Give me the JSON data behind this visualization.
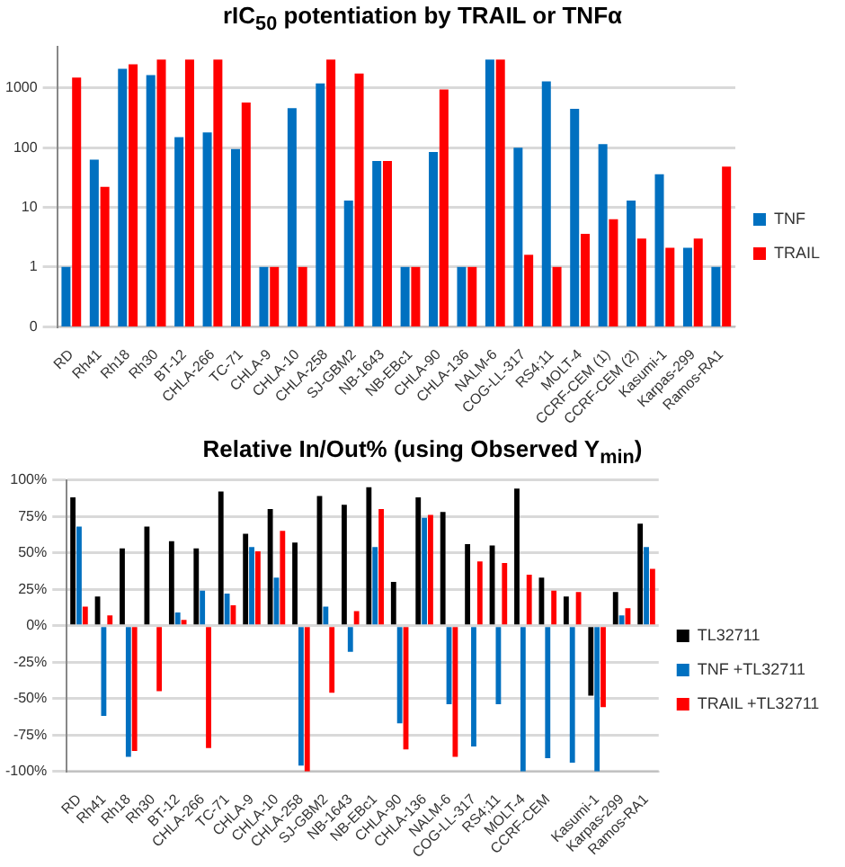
{
  "chart_data": [
    {
      "type": "bar",
      "title": "rIC$_{50}$ potentiation by TRAIL or TNFα",
      "categories": [
        "RD",
        "Rh41",
        "Rh18",
        "Rh30",
        "BT-12",
        "CHLA-266",
        "TC-71",
        "CHLA-9",
        "CHLA-10",
        "CHLA-258",
        "SJ-GBM2",
        "NB-1643",
        "NB-EBc1",
        "CHLA-90",
        "CHLA-136",
        "NALM-6",
        "COG-LL-317",
        "RS4;11",
        "MOLT-4",
        "CCRF-CEM (1)",
        "CCRF-CEM (2)",
        "Kasumi-1",
        "Karpas-299",
        "Ramos-RA1"
      ],
      "series": [
        {
          "name": "TNF",
          "color": "#0070c0",
          "values": [
            1,
            63,
            2100,
            1650,
            150,
            180,
            95,
            1,
            460,
            1200,
            13,
            60,
            1,
            85,
            1,
            3000,
            100,
            1300,
            450,
            115,
            13,
            36,
            2.1,
            1
          ]
        },
        {
          "name": "TRAIL",
          "color": "#ff0000",
          "values": [
            1500,
            22,
            2500,
            3000,
            3000,
            3000,
            570,
            1,
            1,
            3000,
            1750,
            60,
            1,
            950,
            1,
            3000,
            1.6,
            1,
            3.6,
            6.3,
            3,
            2.1,
            3,
            48
          ]
        }
      ],
      "log": "y",
      "ylim": [
        0.1,
        5000
      ],
      "yticks": [
        {
          "value": 0.1,
          "label": "0"
        },
        1,
        10,
        100,
        1000
      ],
      "grid": "y",
      "legend": "right"
    },
    {
      "type": "bar",
      "title": "Relative In/Out% (using Observed Y$_{min}$)",
      "categories": [
        "RD",
        "Rh41",
        "Rh18",
        "Rh30",
        "BT-12",
        "CHLA-266",
        "TC-71",
        "CHLA-9",
        "CHLA-10",
        "CHLA-258",
        "SJ-GBM2",
        "NB-1643",
        "NB-EBc1",
        "CHLA-90",
        "CHLA-136",
        "NALM-6",
        "COG-LL-317",
        "RS4;11",
        "MOLT-4",
        "CCRF-CEM",
        null,
        "Kasumi-1",
        "Karpas-299",
        "Ramos-RA1"
      ],
      "series": [
        {
          "name": "TL32711",
          "color": "#000000",
          "values": [
            88,
            20,
            53,
            68,
            58,
            53,
            92,
            63,
            80,
            57,
            89,
            83,
            95,
            30,
            88,
            78,
            56,
            55,
            94,
            33,
            20,
            -48,
            23,
            70
          ]
        },
        {
          "name": "TNF +TL32711",
          "color": "#0070c0",
          "values": [
            68,
            -62,
            -90,
            null,
            9,
            24,
            22,
            54,
            33,
            -96,
            13,
            -18,
            54,
            -67,
            74,
            -54,
            -83,
            -54,
            -100,
            -91,
            -94,
            -100,
            7,
            54
          ]
        },
        {
          "name": "TRAIL +TL32711",
          "color": "#ff0000",
          "values": [
            13,
            7,
            -86,
            -45,
            4,
            -84,
            14,
            51,
            65,
            -100,
            -46,
            10,
            80,
            -85,
            76,
            -90,
            44,
            43,
            35,
            24,
            23,
            -56,
            12,
            39
          ]
        }
      ],
      "ylim": [
        -100,
        100
      ],
      "yticks": [
        {
          "value": -100,
          "label": "-100%"
        },
        {
          "value": -75,
          "label": "-75%"
        },
        {
          "value": -50,
          "label": "-50%"
        },
        {
          "value": -25,
          "label": "-25%"
        },
        {
          "value": 0,
          "label": "0%"
        },
        {
          "value": 25,
          "label": "25%"
        },
        {
          "value": 50,
          "label": "50%"
        },
        {
          "value": 75,
          "label": "75%"
        },
        {
          "value": 100,
          "label": "100%"
        }
      ],
      "grid": "y",
      "legend": "right"
    }
  ]
}
